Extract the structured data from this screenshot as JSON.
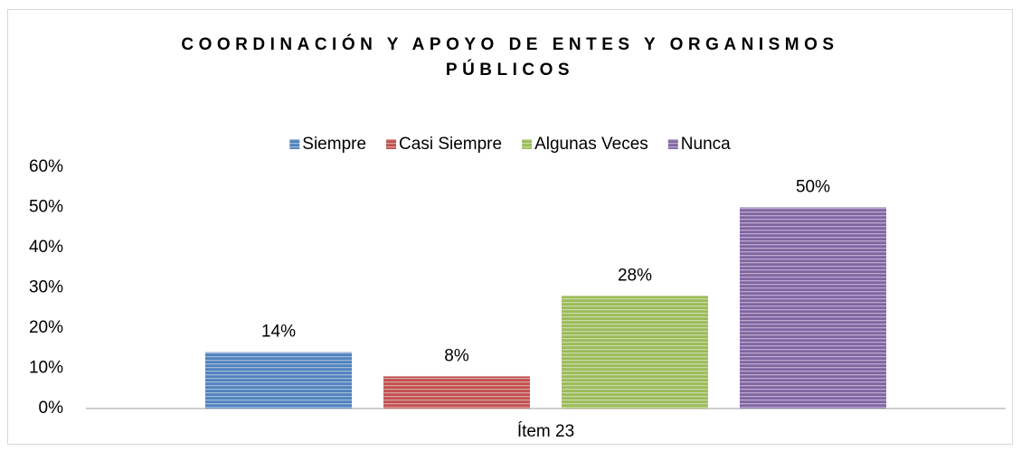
{
  "chart_data": {
    "type": "bar",
    "title": "COORDINACIÓN Y APOYO DE ENTES Y ORGANISMOS PÚBLICOS",
    "categories": [
      "Ítem 23"
    ],
    "series": [
      {
        "name": "Siempre",
        "color": "#4f81bd",
        "values": [
          14
        ],
        "value_labels": [
          "14%"
        ]
      },
      {
        "name": "Casi Siempre",
        "color": "#c0504d",
        "values": [
          8
        ],
        "value_labels": [
          "8%"
        ]
      },
      {
        "name": "Algunas Veces",
        "color": "#9bbb59",
        "values": [
          28
        ],
        "value_labels": [
          "28%"
        ]
      },
      {
        "name": "Nunca",
        "color": "#8064a2",
        "values": [
          50
        ],
        "value_labels": [
          "50%"
        ]
      }
    ],
    "ylim": [
      0,
      60
    ],
    "yticks": [
      {
        "value": 0,
        "label": "0%"
      },
      {
        "value": 10,
        "label": "10%"
      },
      {
        "value": 20,
        "label": "20%"
      },
      {
        "value": 30,
        "label": "30%"
      },
      {
        "value": 40,
        "label": "40%"
      },
      {
        "value": 50,
        "label": "50%"
      },
      {
        "value": 60,
        "label": "60%"
      }
    ],
    "legend": "top",
    "grid": false
  }
}
